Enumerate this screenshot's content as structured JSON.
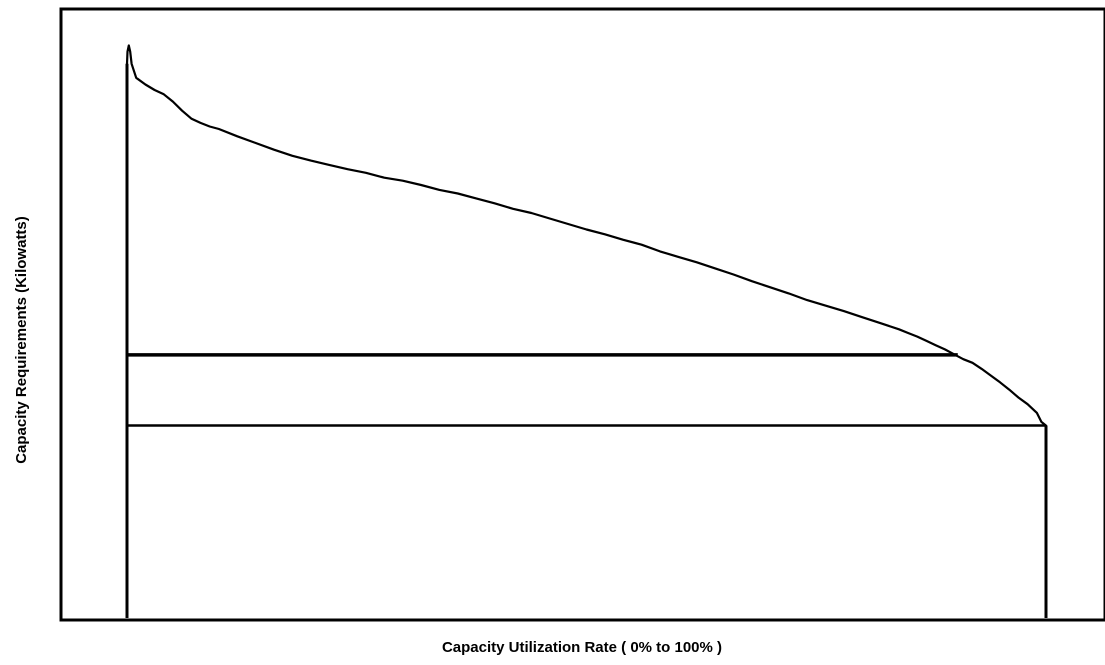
{
  "colors": {
    "background": "#ffffff",
    "ink": "#000000"
  },
  "chart_data": {
    "type": "line",
    "title": "",
    "xlabel": "Capacity Utilization Rate ( 0% to 100% )",
    "ylabel": "Capacity Requirements (Kilowatts)",
    "xlim": [
      0,
      100
    ],
    "ylim": [
      0,
      100
    ],
    "x_ticks": [],
    "y_ticks": [],
    "grid": false,
    "legend": "none",
    "series": [
      {
        "x": [
          0,
          0.05,
          0.2,
          0.35,
          0.5,
          1,
          2,
          3,
          4,
          5,
          6,
          7,
          8,
          9,
          10,
          12,
          14,
          16,
          18,
          20,
          22,
          24,
          26,
          28,
          30,
          32,
          34,
          36,
          38,
          40,
          42,
          44,
          46,
          48,
          50,
          52,
          54,
          56,
          58,
          60,
          62,
          64,
          66,
          68,
          70,
          72,
          74,
          76,
          78,
          80,
          82,
          84,
          85,
          86,
          87,
          88,
          89,
          90,
          91,
          92,
          93,
          94,
          95,
          96,
          97,
          98,
          99,
          99.5,
          100
        ],
        "y": [
          91,
          93,
          94,
          93,
          91,
          88.7,
          87.6,
          86.7,
          86,
          84.8,
          83.3,
          82,
          81.3,
          80.7,
          80.3,
          79.1,
          78,
          76.9,
          75.9,
          75.1,
          74.4,
          73.7,
          73.1,
          72.3,
          71.8,
          71.1,
          70.3,
          69.7,
          68.9,
          68.1,
          67.2,
          66.5,
          65.6,
          64.7,
          63.8,
          63,
          62.1,
          61.3,
          60.2,
          59.3,
          58.4,
          57.4,
          56.4,
          55.3,
          54.3,
          53.3,
          52.2,
          51.3,
          50.4,
          49.4,
          48.4,
          47.4,
          46.8,
          46.2,
          45.5,
          44.8,
          44.1,
          43.3,
          42.5,
          41.9,
          40.9,
          39.8,
          38.7,
          37.5,
          36.2,
          35.1,
          33.7,
          32.2,
          31.6
        ]
      }
    ],
    "reference_lines": [
      {
        "y": 43.2,
        "x_start": 0,
        "x_end": 90.4
      },
      {
        "y": 31.6,
        "x_start": 0,
        "x_end": 100
      }
    ],
    "vertical_lines": [
      {
        "x": 0,
        "y_start": 0,
        "y_end": 91
      },
      {
        "x": 100,
        "y_start": 0,
        "y_end": 31.6
      }
    ]
  }
}
